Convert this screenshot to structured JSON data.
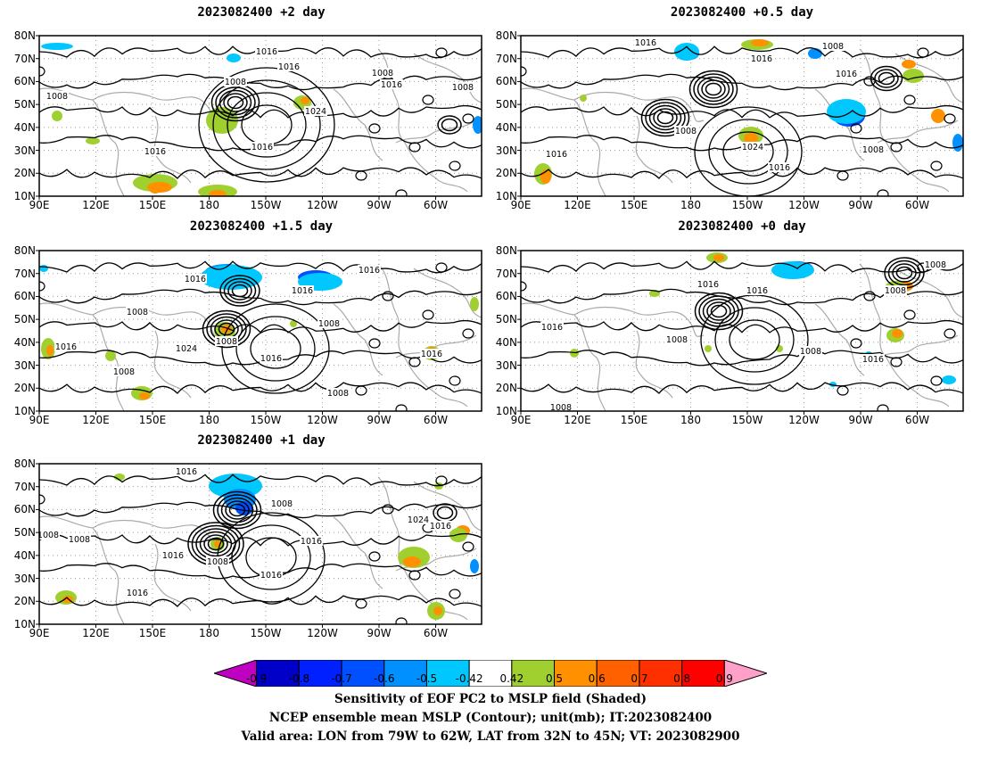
{
  "panels": [
    {
      "id": "p2",
      "title": "2023082400 +2 day",
      "contour_labels": [
        "1008",
        "1016",
        "1008",
        "1016",
        "1008",
        "1016",
        "1024",
        "1016",
        "1016",
        "1008"
      ]
    },
    {
      "id": "p05",
      "title": "2023082400 +0.5 day",
      "contour_labels": [
        "1016",
        "1008",
        "1016",
        "1016",
        "1008",
        "1024",
        "1016",
        "1008",
        "1016"
      ]
    },
    {
      "id": "p15",
      "title": "2023082400 +1.5 day",
      "contour_labels": [
        "1016",
        "1016",
        "1016",
        "1008",
        "1008",
        "1016",
        "1024",
        "1008",
        "1016",
        "1008",
        "1016",
        "1008"
      ]
    },
    {
      "id": "p0",
      "title": "2023082400 +0 day",
      "contour_labels": [
        "1016",
        "1016",
        "1008",
        "1016",
        "1008",
        "1008",
        "1016",
        "1008",
        "1008"
      ]
    },
    {
      "id": "p1",
      "title": "2023082400 +1 day",
      "contour_labels": [
        "1016",
        "1008",
        "1016",
        "1016",
        "1008",
        "1016",
        "1024",
        "1016",
        "1008",
        "1016",
        "1008"
      ]
    }
  ],
  "axes": {
    "lat_ticks": [
      "80N",
      "70N",
      "60N",
      "50N",
      "40N",
      "30N",
      "20N",
      "10N"
    ],
    "lon_ticks": [
      "90E",
      "120E",
      "150E",
      "180",
      "150W",
      "120W",
      "90W",
      "60W"
    ]
  },
  "colorbar": {
    "ticks": [
      "-0.9",
      "-0.8",
      "-0.7",
      "-0.6",
      "-0.5",
      "-0.42",
      "0.42",
      "0.5",
      "0.6",
      "0.7",
      "0.8",
      "0.9"
    ],
    "colors": [
      "#c000c0",
      "#0000c8",
      "#0020ff",
      "#0050ff",
      "#0090ff",
      "#00c8ff",
      "#ffffff",
      "#a0d030",
      "#ff9000",
      "#ff6000",
      "#ff3000",
      "#ff0000",
      "#ffa0c8"
    ]
  },
  "caption": {
    "line1": "Sensitivity of EOF PC2 to MSLP field (Shaded)",
    "line2": "NCEP ensemble mean MSLP (Contour); unit(mb); IT:2023082400",
    "line3": "Valid area: LON from 79W to 62W, LAT from 32N to 45N; VT: 2023082900"
  }
}
